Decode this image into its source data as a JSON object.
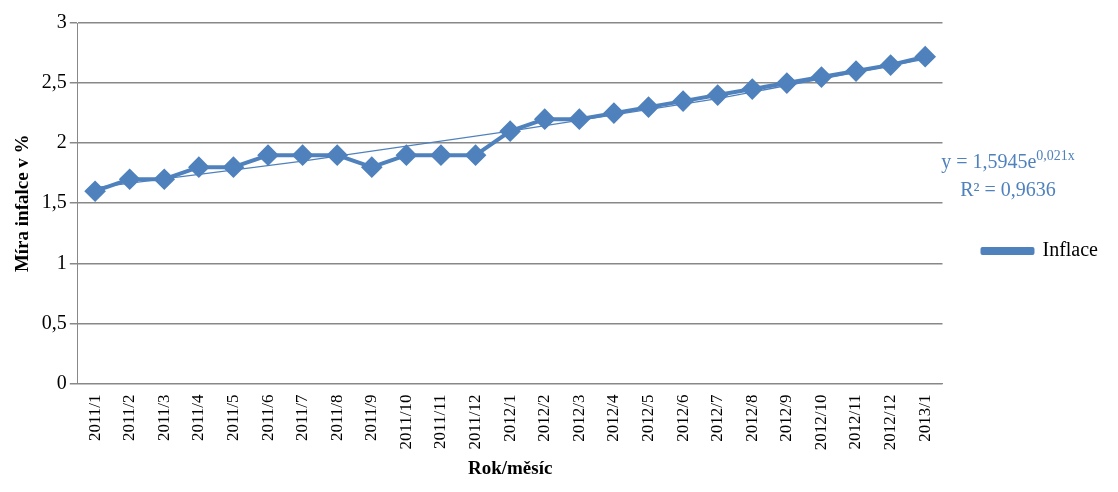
{
  "chart_data": {
    "type": "line",
    "xlabel": "Rok/měsíc",
    "ylabel": "Míra infalce v %",
    "categories": [
      "2011/1",
      "2011/2",
      "2011/3",
      "2011/4",
      "2011/5",
      "2011/6",
      "2011/7",
      "2011/8",
      "2011/9",
      "2011/10",
      "2011/11",
      "2011/12",
      "2012/1",
      "2012/2",
      "2012/3",
      "2012/4",
      "2012/5",
      "2012/6",
      "2012/7",
      "2012/8",
      "2012/9",
      "2012/10",
      "2012/11",
      "2012/12",
      "2013/1"
    ],
    "series": [
      {
        "name": "Inflace",
        "color": "#4f81bd",
        "marker": "diamond",
        "values": [
          1.6,
          1.7,
          1.7,
          1.8,
          1.8,
          1.9,
          1.9,
          1.9,
          1.8,
          1.9,
          1.9,
          1.9,
          2.1,
          2.2,
          2.2,
          2.25,
          2.3,
          2.35,
          2.4,
          2.45,
          2.5,
          2.55,
          2.6,
          2.65,
          2.72
        ]
      },
      {
        "type": "line",
        "color": "#4f81bd",
        "marker": "none",
        "x": [
          "2011/1",
          "2011/7",
          "2012/1",
          "2012/7",
          "2013/1"
        ],
        "values": [
          1.63,
          1.85,
          2.1,
          2.37,
          2.7
        ]
      }
    ],
    "ylim": [
      0,
      3
    ],
    "yticks": [
      {
        "value": 0,
        "label": "0"
      },
      {
        "value": 0.5,
        "label": "0,5"
      },
      {
        "value": 1,
        "label": "1"
      },
      {
        "value": 1.5,
        "label": "1,5"
      },
      {
        "value": 2,
        "label": "2"
      },
      {
        "value": 2.5,
        "label": "2,5"
      },
      {
        "value": 3,
        "label": "3"
      }
    ],
    "grid": "y",
    "legend": "right",
    "annotations": [
      "y = 1,5945e$^{0,021x}$",
      "R² = 0,9636"
    ]
  }
}
